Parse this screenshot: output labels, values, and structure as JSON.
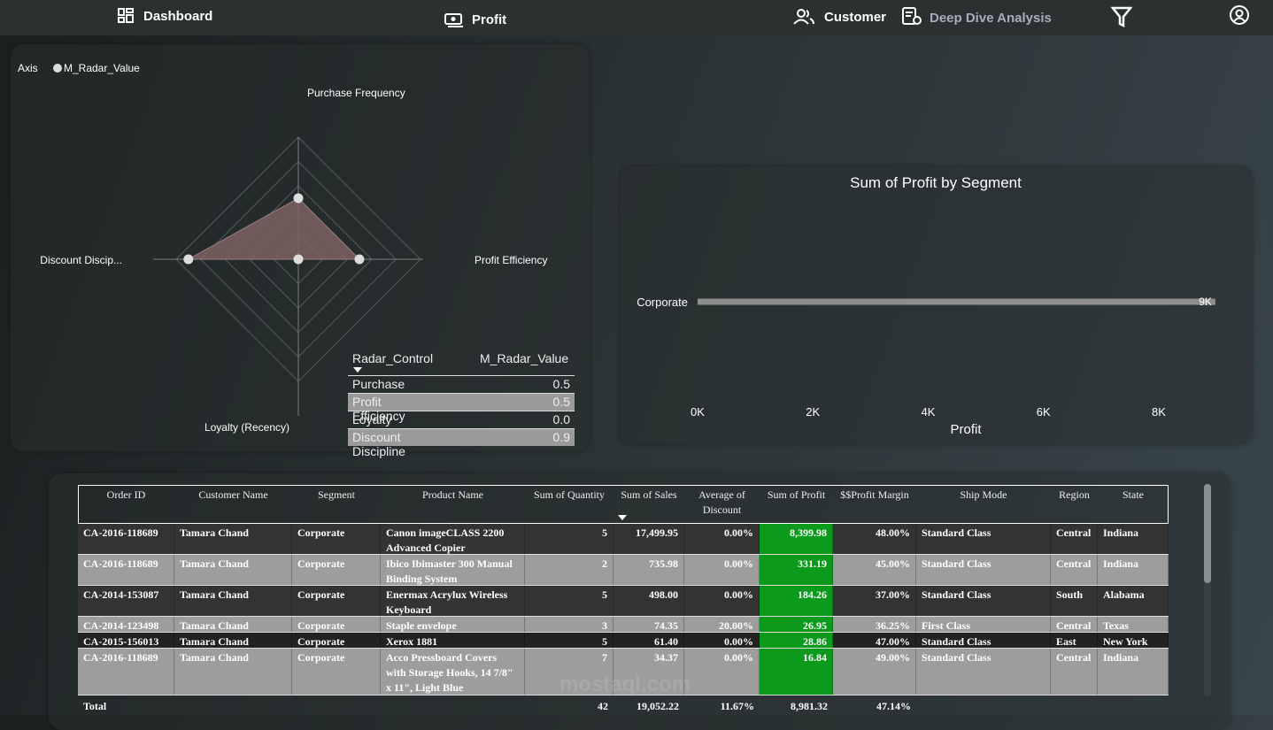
{
  "nav": {
    "items": [
      "Dashboard",
      "Profit",
      "Customer",
      "Deep Dive Analysis"
    ]
  },
  "radar": {
    "type": "radar",
    "legend_title": "Axis",
    "axes": [
      "Purchase Frequency",
      "Profit Efficiency",
      "Loyalty (Recency)",
      "Discount Discip..."
    ],
    "series": {
      "name": "M_Radar_Value",
      "color": "#7d6262",
      "values": [
        0.5,
        0.5,
        0,
        0.9
      ]
    },
    "rlim": [
      0,
      1
    ]
  },
  "radar_table": {
    "headers": [
      "Radar_Control",
      "M_Radar_Value"
    ],
    "rows": [
      [
        "Purchase Frequency",
        "0.5"
      ],
      [
        "Profit Efficiency",
        "0.5"
      ],
      [
        "Loyalty (Recency)",
        "0.0"
      ],
      [
        "Discount Discipline",
        "0.9"
      ]
    ]
  },
  "segment_chart": {
    "type": "bar",
    "title": "Sum of Profit by Segment",
    "categories": [
      "Corporate"
    ],
    "values": [
      8981.32
    ],
    "value_labels": [
      "9K"
    ],
    "color": "#8e8e8e",
    "xlim": [
      0,
      9000
    ],
    "xticks": [
      {
        "value": 0,
        "label": "0K"
      },
      {
        "value": 2000,
        "label": "2K"
      },
      {
        "value": 4000,
        "label": "4K"
      },
      {
        "value": 6000,
        "label": "6K"
      },
      {
        "value": 8000,
        "label": "8K"
      }
    ],
    "xlabel": "Profit"
  },
  "orders_table": {
    "headers": [
      "Order ID",
      "Customer Name",
      "Segment",
      "Product Name",
      "Sum of Quantity",
      "Sum of Sales",
      "Average of Discount",
      "Sum of Profit",
      "$$Profit Margin",
      "Ship Mode",
      "Region",
      "State"
    ],
    "rows": [
      [
        "CA-2016-118689",
        "Tamara Chand",
        "Corporate",
        "Canon imageCLASS 2200 Advanced Copier",
        "5",
        "17,499.95",
        "0.00%",
        "8,399.98",
        "48.00%",
        "Standard Class",
        "Central",
        "Indiana"
      ],
      [
        "CA-2016-118689",
        "Tamara Chand",
        "Corporate",
        "Ibico Ibimaster 300 Manual Binding System",
        "2",
        "735.98",
        "0.00%",
        "331.19",
        "45.00%",
        "Standard Class",
        "Central",
        "Indiana"
      ],
      [
        "CA-2014-153087",
        "Tamara Chand",
        "Corporate",
        "Enermax Acrylux Wireless Keyboard",
        "5",
        "498.00",
        "0.00%",
        "184.26",
        "37.00%",
        "Standard Class",
        "South",
        "Alabama"
      ],
      [
        "CA-2014-123498",
        "Tamara Chand",
        "Corporate",
        "Staple envelope",
        "3",
        "74.35",
        "20.00%",
        "26.95",
        "36.25%",
        "First Class",
        "Central",
        "Texas"
      ],
      [
        "CA-2015-156013",
        "Tamara Chand",
        "Corporate",
        "Xerox 1881",
        "5",
        "61.40",
        "0.00%",
        "28.86",
        "47.00%",
        "Standard Class",
        "East",
        "New York"
      ],
      [
        "CA-2016-118689",
        "Tamara Chand",
        "Corporate",
        "Acco Pressboard Covers with Storage Hooks, 14 7/8\" x 11\", Light Blue",
        "7",
        "34.37",
        "0.00%",
        "16.84",
        "49.00%",
        "Standard Class",
        "Central",
        "Indiana"
      ]
    ],
    "total": {
      "label": "Total",
      "values": [
        "42",
        "19,052.22",
        "11.67%",
        "8,981.32",
        "47.14%"
      ]
    }
  },
  "watermark": "mostaql.com"
}
